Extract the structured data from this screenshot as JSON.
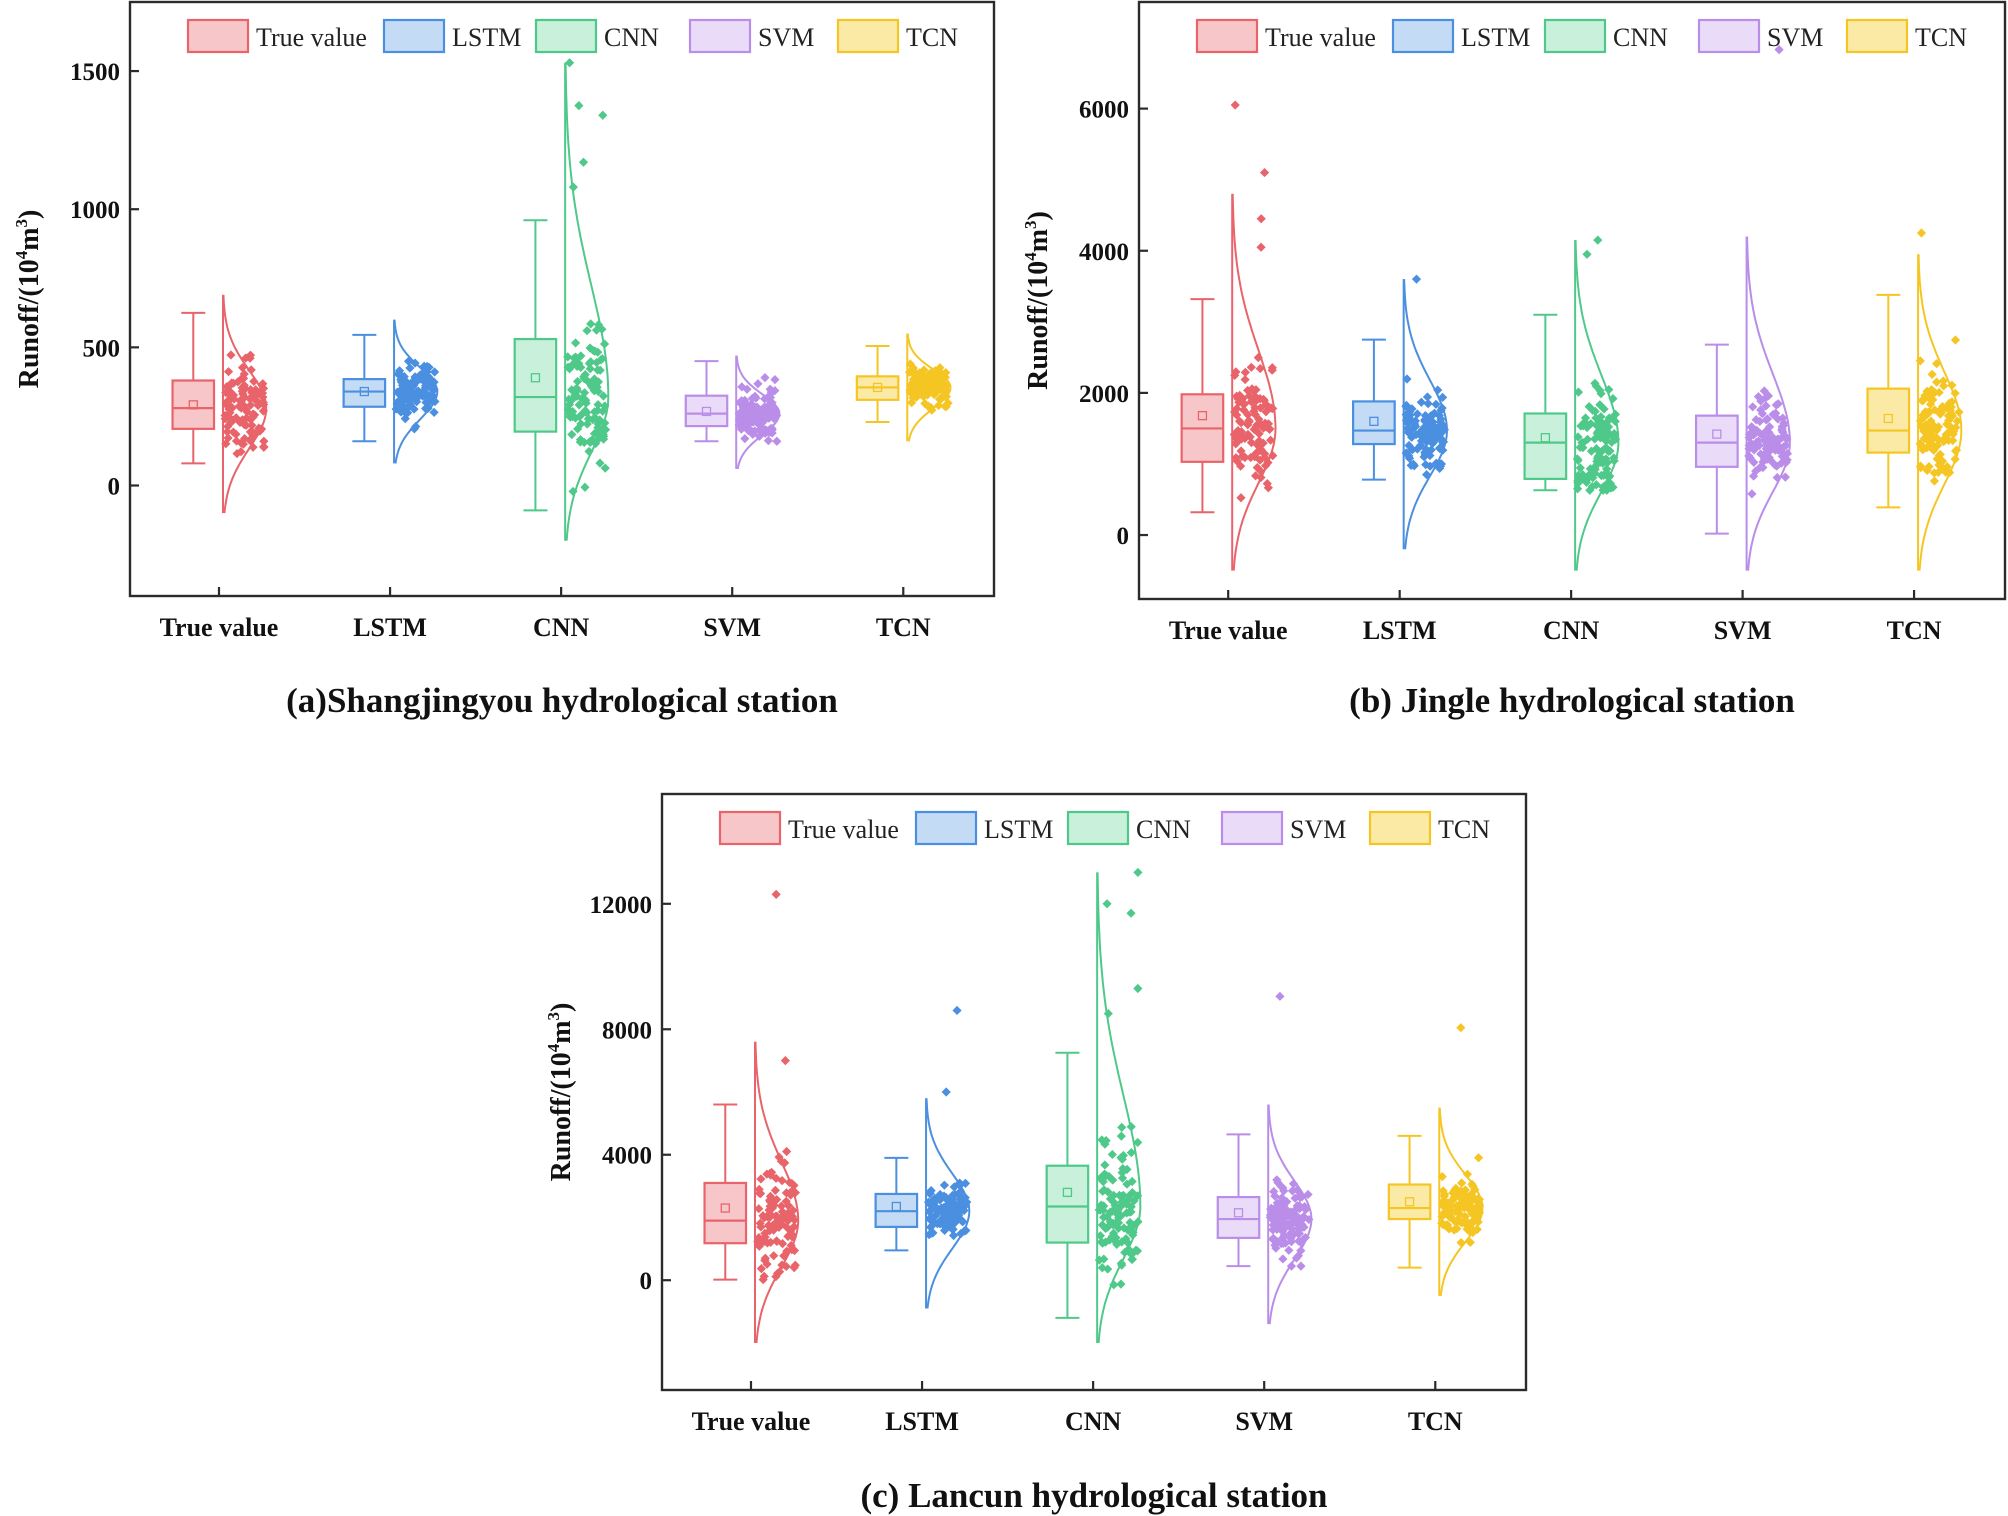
{
  "chart_data": [
    {
      "type": "box",
      "caption": "(a)Shangjingyou hydrological station",
      "ylabel": "Runoff/(10⁴m³)",
      "ylabel_parts": {
        "prefix": "Runoff/(10",
        "sup": "4",
        "middle": "m",
        "sup2": "3",
        "suffix": ")"
      },
      "ylim": [
        -400,
        1750
      ],
      "yticks": [
        0,
        500,
        1000,
        1500
      ],
      "categories": [
        "True value",
        "LSTM",
        "CNN",
        "SVM",
        "TCN"
      ],
      "series": [
        {
          "name": "True value",
          "color": "#e8646a",
          "fill": "#f7c6c8",
          "min": 80,
          "q1": 205,
          "median": 280,
          "q3": 380,
          "max": 625,
          "mean": 292,
          "dist_min": -100,
          "dist_max": 690,
          "outliers": []
        },
        {
          "name": "LSTM",
          "color": "#4a8fe0",
          "fill": "#c4dbf6",
          "min": 160,
          "q1": 285,
          "median": 340,
          "q3": 385,
          "max": 545,
          "mean": 340,
          "dist_min": 80,
          "dist_max": 600,
          "outliers": []
        },
        {
          "name": "CNN",
          "color": "#4fc98a",
          "fill": "#c8f0da",
          "min": -90,
          "q1": 195,
          "median": 320,
          "q3": 530,
          "max": 960,
          "mean": 390,
          "dist_min": -200,
          "dist_max": 1530,
          "outliers": [
            1530,
            1375,
            1340,
            1170,
            1080
          ]
        },
        {
          "name": "SVM",
          "color": "#b98de8",
          "fill": "#eadcf9",
          "min": 160,
          "q1": 215,
          "median": 260,
          "q3": 325,
          "max": 450,
          "mean": 268,
          "dist_min": 60,
          "dist_max": 470,
          "outliers": []
        },
        {
          "name": "TCN",
          "color": "#f5c623",
          "fill": "#fbeaa6",
          "min": 230,
          "q1": 310,
          "median": 355,
          "q3": 395,
          "max": 505,
          "mean": 355,
          "dist_min": 160,
          "dist_max": 550,
          "outliers": []
        }
      ]
    },
    {
      "type": "box",
      "caption": "(b) Jingle hydrological station",
      "ylabel": "Runoff/(10⁴m³)",
      "ylabel_parts": {
        "prefix": "Runoff/(10",
        "sup": "4",
        "middle": "m",
        "sup2": "3",
        "suffix": ")"
      },
      "ylim": [
        -900,
        7500
      ],
      "yticks": [
        0,
        2000,
        4000,
        6000
      ],
      "categories": [
        "True value",
        "LSTM",
        "CNN",
        "SVM",
        "TCN"
      ],
      "series": [
        {
          "name": "True value",
          "color": "#e8646a",
          "fill": "#f7c6c8",
          "min": 320,
          "q1": 1030,
          "median": 1500,
          "q3": 1980,
          "max": 3320,
          "mean": 1680,
          "dist_min": -500,
          "dist_max": 4800,
          "outliers": [
            6050,
            5100,
            4450,
            4050
          ]
        },
        {
          "name": "LSTM",
          "color": "#4a8fe0",
          "fill": "#c4dbf6",
          "min": 780,
          "q1": 1280,
          "median": 1470,
          "q3": 1880,
          "max": 2750,
          "mean": 1600,
          "dist_min": -200,
          "dist_max": 3600,
          "outliers": [
            3600
          ]
        },
        {
          "name": "CNN",
          "color": "#4fc98a",
          "fill": "#c8f0da",
          "min": 630,
          "q1": 790,
          "median": 1300,
          "q3": 1710,
          "max": 3100,
          "mean": 1370,
          "dist_min": -500,
          "dist_max": 4150,
          "outliers": [
            4150,
            3950
          ]
        },
        {
          "name": "SVM",
          "color": "#b98de8",
          "fill": "#eadcf9",
          "min": 20,
          "q1": 960,
          "median": 1300,
          "q3": 1680,
          "max": 2680,
          "mean": 1420,
          "dist_min": -500,
          "dist_max": 4200,
          "outliers": [
            6830
          ]
        },
        {
          "name": "TCN",
          "color": "#f5c623",
          "fill": "#fbeaa6",
          "min": 390,
          "q1": 1160,
          "median": 1470,
          "q3": 2060,
          "max": 3380,
          "mean": 1640,
          "dist_min": -500,
          "dist_max": 3950,
          "outliers": [
            4250
          ]
        }
      ]
    },
    {
      "type": "box",
      "caption": "(c) Lancun hydrological station",
      "ylabel": "Runoff/(10⁴m³)",
      "ylabel_parts": {
        "prefix": "Runoff/(10",
        "sup": "4",
        "middle": "m",
        "sup2": "3",
        "suffix": ")"
      },
      "ylim": [
        -3500,
        15500
      ],
      "yticks": [
        0,
        4000,
        8000,
        12000
      ],
      "categories": [
        "True value",
        "LSTM",
        "CNN",
        "SVM",
        "TCN"
      ],
      "series": [
        {
          "name": "True value",
          "color": "#e8646a",
          "fill": "#f7c6c8",
          "min": 20,
          "q1": 1180,
          "median": 1900,
          "q3": 3100,
          "max": 5600,
          "mean": 2300,
          "dist_min": -2000,
          "dist_max": 7600,
          "outliers": [
            12300,
            7000
          ]
        },
        {
          "name": "LSTM",
          "color": "#4a8fe0",
          "fill": "#c4dbf6",
          "min": 950,
          "q1": 1700,
          "median": 2200,
          "q3": 2750,
          "max": 3900,
          "mean": 2350,
          "dist_min": -900,
          "dist_max": 5800,
          "outliers": [
            8600,
            6000
          ]
        },
        {
          "name": "CNN",
          "color": "#4fc98a",
          "fill": "#c8f0da",
          "min": -1200,
          "q1": 1200,
          "median": 2350,
          "q3": 3650,
          "max": 7250,
          "mean": 2800,
          "dist_min": -2000,
          "dist_max": 13000,
          "outliers": [
            13000,
            12000,
            11700,
            9300,
            8500
          ]
        },
        {
          "name": "SVM",
          "color": "#b98de8",
          "fill": "#eadcf9",
          "min": 450,
          "q1": 1350,
          "median": 1950,
          "q3": 2650,
          "max": 4650,
          "mean": 2150,
          "dist_min": -1400,
          "dist_max": 5600,
          "outliers": [
            9050
          ]
        },
        {
          "name": "TCN",
          "color": "#f5c623",
          "fill": "#fbeaa6",
          "min": 400,
          "q1": 1950,
          "median": 2300,
          "q3": 3050,
          "max": 4600,
          "mean": 2500,
          "dist_min": -500,
          "dist_max": 5500,
          "outliers": [
            8050
          ]
        }
      ]
    }
  ]
}
